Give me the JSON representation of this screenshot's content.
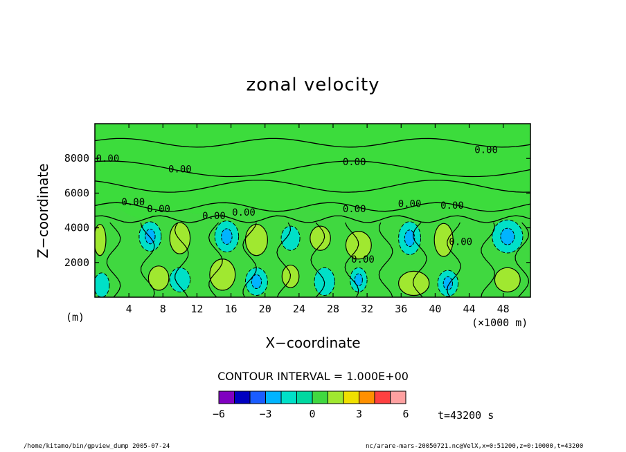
{
  "chart_data": {
    "type": "heatmap",
    "title": "zonal velocity",
    "xlabel": "X−coordinate",
    "ylabel": "Z−coordinate",
    "x_unit": "(×1000 m)",
    "y_unit": "(m)",
    "xlim": [
      0,
      51.2
    ],
    "ylim": [
      0,
      10000
    ],
    "x_ticks": [
      4,
      8,
      12,
      16,
      20,
      24,
      28,
      32,
      36,
      40,
      44,
      48
    ],
    "y_ticks": [
      2000,
      4000,
      6000,
      8000
    ],
    "contour_interval": "CONTOUR INTERVAL = 1.000E+00",
    "contour_labels": [
      {
        "text": "0.00",
        "x": 1.5,
        "y": 7800
      },
      {
        "text": "0.00",
        "x": 10.0,
        "y": 7200
      },
      {
        "text": "0.00",
        "x": 30.5,
        "y": 7600
      },
      {
        "text": "0.00",
        "x": 46.0,
        "y": 8300
      },
      {
        "text": "0.00",
        "x": 4.5,
        "y": 5300
      },
      {
        "text": "0.00",
        "x": 7.5,
        "y": 4900
      },
      {
        "text": "0.00",
        "x": 14.0,
        "y": 4500
      },
      {
        "text": "0.00",
        "x": 17.5,
        "y": 4700
      },
      {
        "text": "0.00",
        "x": 30.5,
        "y": 4900
      },
      {
        "text": "0.00",
        "x": 37.0,
        "y": 5200
      },
      {
        "text": "0.00",
        "x": 42.0,
        "y": 5100
      },
      {
        "text": "0.00",
        "x": 31.5,
        "y": 2000
      },
      {
        "text": "0.00",
        "x": 43.0,
        "y": 3000
      }
    ],
    "positive_cells": [
      {
        "x": 7.5,
        "y": 1100,
        "rx": 1.2,
        "ry": 700
      },
      {
        "x": 10.0,
        "y": 3400,
        "rx": 1.2,
        "ry": 900
      },
      {
        "x": 15.0,
        "y": 1300,
        "rx": 1.5,
        "ry": 900
      },
      {
        "x": 19.0,
        "y": 3300,
        "rx": 1.3,
        "ry": 900
      },
      {
        "x": 23.0,
        "y": 1200,
        "rx": 1.0,
        "ry": 650
      },
      {
        "x": 26.5,
        "y": 3400,
        "rx": 1.2,
        "ry": 700
      },
      {
        "x": 31.0,
        "y": 3000,
        "rx": 1.5,
        "ry": 800
      },
      {
        "x": 37.5,
        "y": 800,
        "rx": 1.8,
        "ry": 700
      },
      {
        "x": 41.0,
        "y": 3300,
        "rx": 1.1,
        "ry": 950
      },
      {
        "x": 48.5,
        "y": 1000,
        "rx": 1.5,
        "ry": 700
      },
      {
        "x": 0.6,
        "y": 3300,
        "rx": 0.7,
        "ry": 900
      }
    ],
    "negative_cells": [
      {
        "x": 6.5,
        "y": 3500,
        "rx": 1.3,
        "ry": 850,
        "deep": true
      },
      {
        "x": 10.0,
        "y": 1000,
        "rx": 1.2,
        "ry": 700,
        "deep": false
      },
      {
        "x": 15.5,
        "y": 3500,
        "rx": 1.4,
        "ry": 900,
        "deep": true
      },
      {
        "x": 19.0,
        "y": 900,
        "rx": 1.3,
        "ry": 800,
        "deep": true
      },
      {
        "x": 23.0,
        "y": 3400,
        "rx": 1.1,
        "ry": 700,
        "deep": false
      },
      {
        "x": 27.0,
        "y": 900,
        "rx": 1.2,
        "ry": 800,
        "deep": false
      },
      {
        "x": 31.0,
        "y": 1000,
        "rx": 1.0,
        "ry": 700,
        "deep": true
      },
      {
        "x": 37.0,
        "y": 3400,
        "rx": 1.3,
        "ry": 950,
        "deep": true
      },
      {
        "x": 41.5,
        "y": 800,
        "rx": 1.2,
        "ry": 750,
        "deep": true
      },
      {
        "x": 48.5,
        "y": 3500,
        "rx": 1.8,
        "ry": 950,
        "deep": true
      },
      {
        "x": 0.8,
        "y": 700,
        "rx": 0.9,
        "ry": 700,
        "deep": false
      }
    ],
    "colorbar": {
      "colors": [
        "#8000c0",
        "#0000c0",
        "#1a5cff",
        "#00b4ff",
        "#00e0c8",
        "#00d8a0",
        "#40d840",
        "#a0e830",
        "#f0e000",
        "#ff9000",
        "#ff4040",
        "#ffa0a0"
      ],
      "labels": [
        "−6",
        "−3",
        "0",
        "3",
        "6"
      ],
      "values": [
        -6,
        -3,
        0,
        3,
        6
      ],
      "range": [
        -6,
        6
      ]
    }
  },
  "colors": {
    "background": "#40d840",
    "upper_layer": "#3cdc3c",
    "positive": "#a0e830",
    "negative": "#00e0c8",
    "negative_deep": "#00b4ff"
  },
  "time_label": "t=43200 s",
  "footer": {
    "left": "/home/kitamo/bin/gpview_dump  2005-07-24",
    "right": "nc/arare-mars-20050721.nc@VelX,x=0:51200,z=0:10000,t=43200"
  }
}
